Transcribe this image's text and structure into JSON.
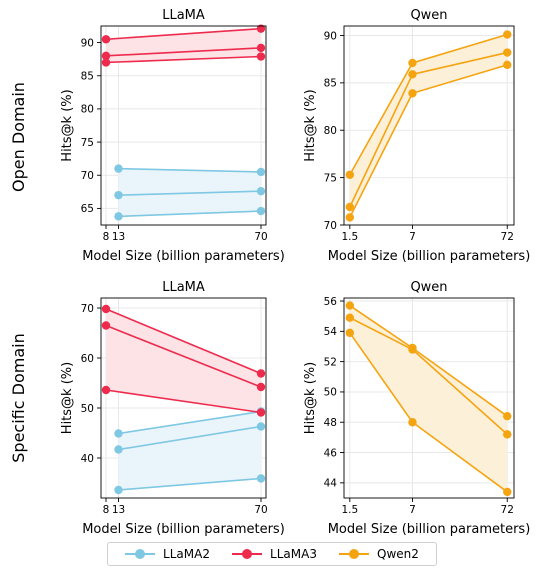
{
  "figure": {
    "row_labels": [
      "Open Domain",
      "Specific Domain"
    ],
    "xlabel": "Model Size (billion parameters)",
    "ylabel": "Hits@k (%)"
  },
  "legend": [
    {
      "name": "LLaMA2",
      "color": "#7ec8e3"
    },
    {
      "name": "LLaMA3",
      "color": "#ee2a4d"
    },
    {
      "name": "Qwen2",
      "color": "#f5a411"
    }
  ],
  "chart_data": [
    {
      "type": "line",
      "title": "LLaMA",
      "row": "Open Domain",
      "xlabel": "Model Size (billion parameters)",
      "ylabel": "Hits@k (%)",
      "xscale": "linear",
      "xticks": [
        8,
        13,
        70
      ],
      "xtick_labels": [
        "8",
        "13",
        "70"
      ],
      "xlim": [
        6,
        72
      ],
      "ylim": [
        62.5,
        92.5
      ],
      "yticks": [
        65,
        70,
        75,
        80,
        85,
        90
      ],
      "grid": true,
      "series": [
        {
          "name": "LLaMA2",
          "color": "#7ec8e3",
          "fill": "#eaf5fb",
          "x": [
            13,
            70
          ],
          "lines": [
            [
              63.8,
              64.6
            ],
            [
              67.0,
              67.6
            ],
            [
              71.0,
              70.5
            ]
          ]
        },
        {
          "name": "LLaMA3",
          "color": "#ee2a4d",
          "fill": "#fde2e6",
          "x": [
            8,
            70
          ],
          "lines": [
            [
              87.0,
              87.9
            ],
            [
              88.0,
              89.2
            ],
            [
              90.5,
              92.1
            ]
          ]
        }
      ]
    },
    {
      "type": "line",
      "title": "Qwen",
      "row": "Open Domain",
      "xlabel": "Model Size (billion parameters)",
      "ylabel": "Hits@k (%)",
      "xscale": "log",
      "xticks": [
        1.5,
        7,
        72
      ],
      "xtick_labels": [
        "1.5",
        "7",
        "72"
      ],
      "xlim": [
        1.3,
        85
      ],
      "ylim": [
        70,
        91
      ],
      "yticks": [
        70,
        75,
        80,
        85,
        90
      ],
      "grid": true,
      "series": [
        {
          "name": "Qwen2",
          "color": "#f5a411",
          "fill": "#fdf0d8",
          "x": [
            1.5,
            7,
            72
          ],
          "lines": [
            [
              70.8,
              83.9,
              86.9
            ],
            [
              71.9,
              85.9,
              88.2
            ],
            [
              75.3,
              87.1,
              90.1
            ]
          ]
        }
      ]
    },
    {
      "type": "line",
      "title": "LLaMA",
      "row": "Specific Domain",
      "xlabel": "Model Size (billion parameters)",
      "ylabel": "Hits@k (%)",
      "xscale": "linear",
      "xticks": [
        8,
        13,
        70
      ],
      "xtick_labels": [
        "8",
        "13",
        "70"
      ],
      "xlim": [
        6,
        72
      ],
      "ylim": [
        32,
        72
      ],
      "yticks": [
        40,
        50,
        60,
        70
      ],
      "grid": true,
      "series": [
        {
          "name": "LLaMA2",
          "color": "#7ec8e3",
          "fill": "#eaf5fb",
          "x": [
            13,
            70
          ],
          "lines": [
            [
              33.6,
              35.9
            ],
            [
              41.7,
              46.3
            ],
            [
              44.9,
              49.3
            ]
          ]
        },
        {
          "name": "LLaMA3",
          "color": "#ee2a4d",
          "fill": "#fde2e6",
          "x": [
            8,
            70
          ],
          "lines": [
            [
              53.6,
              49.1
            ],
            [
              66.5,
              54.2
            ],
            [
              69.8,
              56.9
            ]
          ]
        }
      ]
    },
    {
      "type": "line",
      "title": "Qwen",
      "row": "Specific Domain",
      "xlabel": "Model Size (billion parameters)",
      "ylabel": "Hits@k (%)",
      "xscale": "log",
      "xticks": [
        1.5,
        7,
        72
      ],
      "xtick_labels": [
        "1.5",
        "7",
        "72"
      ],
      "xlim": [
        1.3,
        85
      ],
      "ylim": [
        43,
        56.2
      ],
      "yticks": [
        44,
        46,
        48,
        50,
        52,
        54,
        56
      ],
      "grid": true,
      "series": [
        {
          "name": "Qwen2",
          "color": "#f5a411",
          "fill": "#fdf0d8",
          "x": [
            1.5,
            7,
            72
          ],
          "lines": [
            [
              53.9,
              48.0,
              43.4
            ],
            [
              54.9,
              52.8,
              47.2
            ],
            [
              55.7,
              52.9,
              48.4
            ]
          ]
        }
      ]
    }
  ]
}
